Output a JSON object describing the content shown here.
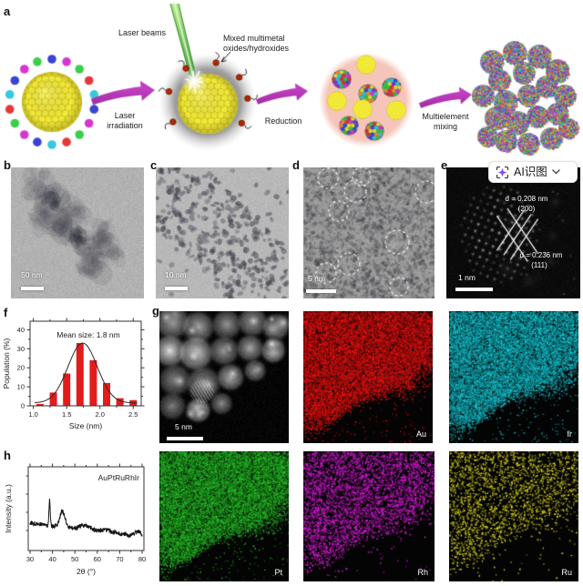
{
  "panels": {
    "a": "a",
    "b": "b",
    "c": "c",
    "d": "d",
    "e": "e",
    "f": "f",
    "g": "g",
    "h": "h"
  },
  "panel_a": {
    "laser_beams": "Laser beams",
    "mixed_line1": "Mixed multimetal",
    "mixed_line2": "oxides/hydroxides",
    "step1_line1": "Laser",
    "step1_line2": "irradiation",
    "step2": "Reduction",
    "step3_line1": "Multielement",
    "step3_line2": "mixing",
    "arrow_color": "#a62ba6",
    "laser_color": "#4aa83c",
    "core_color": "#f3eb3c",
    "shell_dot_colors": [
      "#3a43d6",
      "#d636cf",
      "#3bcf49",
      "#e23a3a",
      "#37c9de"
    ],
    "droplet_color": "#f6c5b9",
    "oxide_dot_color": "#ad2a06",
    "mix_palette": [
      "#cf3434",
      "#3448cf",
      "#2fbf3f",
      "#cf34cf",
      "#2fbfcf",
      "#d8d832",
      "#7a34cf",
      "#e2862f"
    ]
  },
  "panel_b": {
    "scale_bar": "50 nm"
  },
  "panel_c": {
    "scale_bar": "10 nm"
  },
  "panel_d": {
    "scale_bar": "5 nm"
  },
  "panel_e": {
    "scale_bar": "1 nm",
    "d_spacing_1": "d = 0.208 nm",
    "plane_1": "(200)",
    "d_spacing_2": "d = 0.236 nm",
    "plane_2": "(111)"
  },
  "ai_button": {
    "label": "AI识图",
    "icon": "sparkle-scan-icon",
    "accent_color": "#7c4af0"
  },
  "panel_g": {
    "scale_bar": "5 nm",
    "maps": [
      {
        "element": "Au",
        "color": "#e01212",
        "density": 1.0
      },
      {
        "element": "Ir",
        "color": "#14b8c4",
        "density": 1.0
      },
      {
        "element": "Pt",
        "color": "#24b324",
        "density": 1.0
      },
      {
        "element": "Rh",
        "color": "#c81ac8",
        "density": 0.52
      },
      {
        "element": "Ru",
        "color": "#c6c01c",
        "density": 0.38
      }
    ]
  },
  "chart_data": [
    {
      "type": "bar",
      "panel": "f",
      "title": "",
      "annotation": "Mean size: 1.8 nm",
      "xlabel": "Size (nm)",
      "ylabel": "Population (%)",
      "categories": [
        1.1,
        1.3,
        1.5,
        1.7,
        1.9,
        2.1,
        2.3,
        2.5
      ],
      "values": [
        1,
        7,
        17,
        33,
        24,
        12,
        4,
        3
      ],
      "xlim": [
        0.95,
        2.62
      ],
      "ylim": [
        0,
        44.5
      ],
      "xticks": [
        1.0,
        1.5,
        2.0,
        2.5
      ],
      "yticks": [
        0,
        10,
        20,
        30,
        40
      ],
      "bar_color": "#e31b1c",
      "fit_curve": {
        "type": "gaussian",
        "mean": 1.74,
        "sigma": 0.22,
        "amplitude": 31.5,
        "baseline": 1.5
      }
    },
    {
      "type": "line",
      "panel": "h",
      "sample_label": "AuPtRuRhIr",
      "xlabel": "2θ (°)",
      "ylabel": "Intensity (a.u.)",
      "xlim": [
        30,
        80
      ],
      "xticks": [
        30,
        40,
        50,
        60,
        70,
        80
      ],
      "baseline": {
        "start": 16,
        "end": 8
      },
      "noise_amplitude": 1.3,
      "peaks": [
        {
          "two_theta": 38.7,
          "height": 14.5,
          "sigma": 0.28
        },
        {
          "two_theta": 44.4,
          "height": 9.0,
          "sigma": 1.1
        },
        {
          "two_theta": 54.5,
          "height": 2.5,
          "sigma": 2.2
        },
        {
          "two_theta": 64.5,
          "height": 1.2,
          "sigma": 2.6
        },
        {
          "two_theta": 78.3,
          "height": 2.6,
          "sigma": 1.4
        }
      ],
      "line_color": "#141414"
    }
  ]
}
